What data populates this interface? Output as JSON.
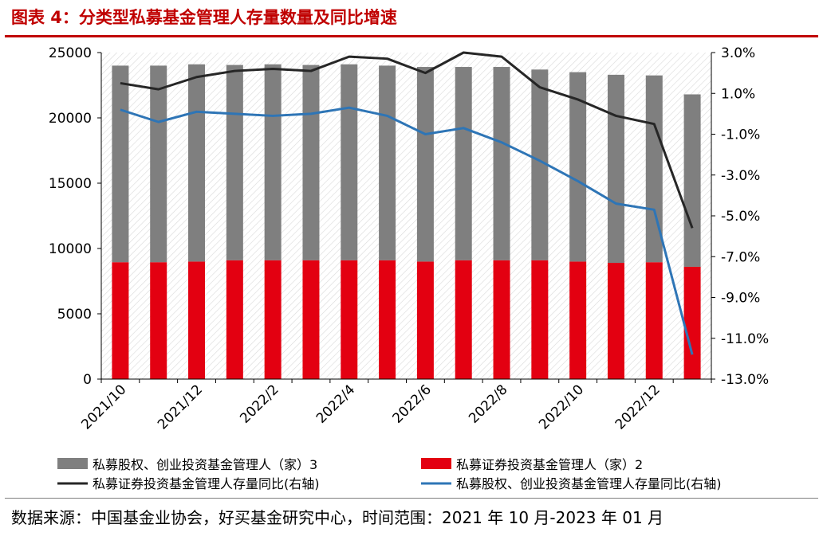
{
  "header": {
    "title": "图表 4：分类型私募基金管理人存量数量及同比增速"
  },
  "footer": {
    "source": "数据来源：中国基金业协会，好买基金研究中心，时间范围：2021 年 10 月-2023 年 01 月"
  },
  "chart_data": {
    "type": "bar+line",
    "stacked": true,
    "categories": [
      "2021/10",
      "2021/11",
      "2021/12",
      "2022/1",
      "2022/2",
      "2022/3",
      "2022/4",
      "2022/5",
      "2022/6",
      "2022/7",
      "2022/8",
      "2022/9",
      "2022/10",
      "2022/11",
      "2022/12",
      "2023/1"
    ],
    "x_tick_labels": [
      "2021/10",
      "2021/12",
      "2022/2",
      "2022/4",
      "2022/6",
      "2022/8",
      "2022/10",
      "2022/12"
    ],
    "y_left": {
      "min": 0,
      "max": 25000,
      "ticks": [
        "0",
        "5000",
        "10000",
        "15000",
        "20000",
        "25000"
      ]
    },
    "y_right": {
      "min": -13.0,
      "max": 3.0,
      "ticks": [
        "3.0%",
        "1.0%",
        "-1.0%",
        "-3.0%",
        "-5.0%",
        "-7.0%",
        "-9.0%",
        "-11.0%",
        "-13.0%"
      ]
    },
    "bar_series": [
      {
        "name": "私募股权、创业投资基金管理人（家）3",
        "color": "#7f7f7f",
        "values": [
          15050,
          15050,
          15100,
          14950,
          15000,
          14950,
          15000,
          14900,
          14900,
          14800,
          14800,
          14600,
          14500,
          14400,
          14300,
          13200
        ]
      },
      {
        "name": "私募证券投资基金管理人（家）2",
        "color": "#e30011",
        "values": [
          8950,
          8950,
          9000,
          9100,
          9100,
          9100,
          9100,
          9100,
          9000,
          9100,
          9100,
          9100,
          9000,
          8900,
          8950,
          8600
        ]
      }
    ],
    "line_series": [
      {
        "name": "私募证券投资基金管理人存量同比(右轴)",
        "axis": "right",
        "color": "#262626",
        "values": [
          1.5,
          1.2,
          1.8,
          2.1,
          2.2,
          2.1,
          2.8,
          2.7,
          2.0,
          3.0,
          2.8,
          1.3,
          0.7,
          -0.1,
          -0.5,
          -5.6
        ]
      },
      {
        "name": "私募股权、创业投资基金管理人存量同比(右轴)",
        "axis": "right",
        "color": "#2e75b6",
        "values": [
          0.2,
          -0.4,
          0.1,
          0.0,
          -0.1,
          0.0,
          0.3,
          -0.1,
          -1.0,
          -0.7,
          -1.4,
          -2.3,
          -3.3,
          -4.4,
          -4.7,
          -11.8
        ]
      }
    ],
    "legend_position": "bottom",
    "grid": false,
    "plot_background": "diagonal-hatch"
  }
}
